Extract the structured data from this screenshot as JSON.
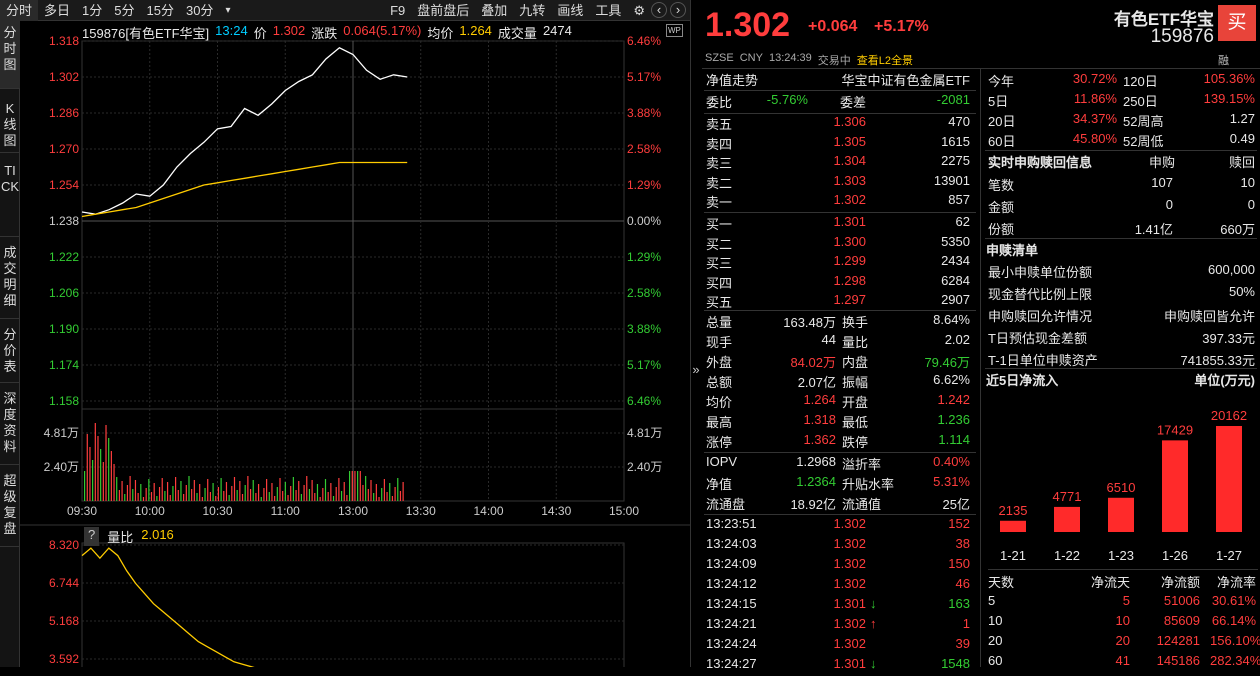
{
  "toolbar": {
    "items": [
      "分时",
      "多日",
      "1分",
      "5分",
      "15分",
      "30分",
      "▾",
      "F9",
      "盘前盘后",
      "叠加",
      "九转",
      "画线",
      "工具"
    ]
  },
  "leftnav": [
    "分时图",
    "K线图",
    "TICK",
    "成交明细",
    "分价表",
    "深度资料",
    "超级复盘"
  ],
  "chart_header": {
    "code_name": "159876[有色ETF华宝]",
    "time": "13:24",
    "price_label": "价",
    "price": "1.302",
    "change_label": "涨跌",
    "change": "0.064(5.17%)",
    "avg_label": "均价",
    "avg": "1.264",
    "vol_label": "成交量",
    "vol": "2474"
  },
  "volratio_header": {
    "q": "?",
    "label": "量比",
    "value": "2.016"
  },
  "chart_data": [
    {
      "type": "line",
      "title": "",
      "y_price_ticks": [
        "1.318",
        "1.302",
        "1.286",
        "1.270",
        "1.254",
        "1.238",
        "1.222",
        "1.206",
        "1.190",
        "1.174",
        "1.158"
      ],
      "y_pct_ticks": [
        "6.46%",
        "5.17%",
        "3.88%",
        "2.58%",
        "1.29%",
        "0.00%",
        "1.29%",
        "2.58%",
        "3.88%",
        "5.17%",
        "6.46%"
      ],
      "x_ticks": [
        "09:30",
        "10:00",
        "10:30",
        "11:00",
        "13:00",
        "13:30",
        "14:00",
        "14:30",
        "15:00"
      ],
      "prev_close": 1.238,
      "ylim": [
        1.158,
        1.318
      ],
      "series": [
        {
          "color": "#ffffff",
          "values": [
            1.242,
            1.241,
            1.243,
            1.246,
            1.25,
            1.249,
            1.254,
            1.262,
            1.268,
            1.273,
            1.279,
            1.28,
            1.288,
            1.285,
            1.29,
            1.296,
            1.3,
            1.303,
            1.31,
            1.315,
            1.312,
            1.305,
            1.301,
            1.303,
            1.302
          ]
        },
        {
          "color": "#ffcc00",
          "values": [
            1.24,
            1.241,
            1.242,
            1.243,
            1.244,
            1.246,
            1.248,
            1.25,
            1.252,
            1.254,
            1.255,
            1.256,
            1.257,
            1.258,
            1.259,
            1.26,
            1.261,
            1.262,
            1.263,
            1.264,
            1.264,
            1.264,
            1.264,
            1.264,
            1.264
          ]
        }
      ],
      "volume_ticks": [
        "4.81万",
        "2.40万"
      ]
    },
    {
      "type": "line",
      "y_ticks": [
        "8.320",
        "6.744",
        "5.168",
        "3.592"
      ],
      "ylim": [
        3.2,
        8.5
      ],
      "series": [
        {
          "color": "#ffcc00",
          "values": [
            8.0,
            8.3,
            7.9,
            8.3,
            8.0,
            7.4,
            6.9,
            6.5,
            6.1,
            5.8,
            5.5,
            5.2,
            4.9,
            4.6,
            4.4,
            4.2,
            4.0,
            3.8,
            3.7,
            3.6,
            3.5
          ]
        }
      ]
    },
    {
      "type": "bar",
      "title": "近5日净流入",
      "unit": "单位(万元)",
      "categories": [
        "1-21",
        "1-22",
        "1-23",
        "1-26",
        "1-27"
      ],
      "values": [
        2135,
        4771,
        6510,
        17429,
        20162
      ]
    }
  ],
  "quote": {
    "name": "有色ETF华宝",
    "code": "159876",
    "buy_badge": "买",
    "price": "1.302",
    "change": "+0.064",
    "pct": "+5.17%",
    "exchange": "SZSE",
    "currency": "CNY",
    "time": "13:24:39",
    "status": "交易中",
    "l2": "查看L2全景",
    "fusion": "融"
  },
  "nav_row": {
    "left": "净值走势",
    "right": "华宝中证有色金属ETF"
  },
  "weibi": {
    "l1": "委比",
    "v1": "-5.76%",
    "l2": "委差",
    "v2": "-2081"
  },
  "asks": [
    {
      "label": "卖五",
      "price": "1.306",
      "vol": "470"
    },
    {
      "label": "卖四",
      "price": "1.305",
      "vol": "1615"
    },
    {
      "label": "卖三",
      "price": "1.304",
      "vol": "2275"
    },
    {
      "label": "卖二",
      "price": "1.303",
      "vol": "13901"
    },
    {
      "label": "卖一",
      "price": "1.302",
      "vol": "857"
    }
  ],
  "bids": [
    {
      "label": "买一",
      "price": "1.301",
      "vol": "62"
    },
    {
      "label": "买二",
      "price": "1.300",
      "vol": "5350"
    },
    {
      "label": "买三",
      "price": "1.299",
      "vol": "2434"
    },
    {
      "label": "买四",
      "price": "1.298",
      "vol": "6284"
    },
    {
      "label": "买五",
      "price": "1.297",
      "vol": "2907"
    }
  ],
  "stats": [
    {
      "l1": "总量",
      "v1": "163.48万",
      "c1": "white",
      "l2": "换手",
      "v2": "8.64%",
      "c2": "white"
    },
    {
      "l1": "现手",
      "v1": "44",
      "c1": "white",
      "l2": "量比",
      "v2": "2.02",
      "c2": "white"
    },
    {
      "l1": "外盘",
      "v1": "84.02万",
      "c1": "red",
      "l2": "内盘",
      "v2": "79.46万",
      "c2": "green"
    },
    {
      "l1": "总额",
      "v1": "2.07亿",
      "c1": "white",
      "l2": "振幅",
      "v2": "6.62%",
      "c2": "white"
    },
    {
      "l1": "均价",
      "v1": "1.264",
      "c1": "red",
      "l2": "开盘",
      "v2": "1.242",
      "c2": "red"
    },
    {
      "l1": "最高",
      "v1": "1.318",
      "c1": "red",
      "l2": "最低",
      "v2": "1.236",
      "c2": "green"
    },
    {
      "l1": "涨停",
      "v1": "1.362",
      "c1": "red",
      "l2": "跌停",
      "v2": "1.114",
      "c2": "green"
    }
  ],
  "stats2": [
    {
      "l1": "IOPV",
      "v1": "1.2968",
      "c1": "white",
      "l2": "溢折率",
      "v2": "0.40%",
      "c2": "red"
    },
    {
      "l1": "净值",
      "v1": "1.2364",
      "c1": "green",
      "l2": "升贴水率",
      "v2": "5.31%",
      "c2": "red"
    },
    {
      "l1": "流通盘",
      "v1": "18.92亿",
      "c1": "white",
      "l2": "流通值",
      "v2": "25亿",
      "c2": "white"
    }
  ],
  "ticks": [
    {
      "time": "13:23:51",
      "price": "1.302",
      "arrow": "",
      "vol": "152",
      "vc": "red"
    },
    {
      "time": "13:24:03",
      "price": "1.302",
      "arrow": "",
      "vol": "38",
      "vc": "red"
    },
    {
      "time": "13:24:09",
      "price": "1.302",
      "arrow": "",
      "vol": "150",
      "vc": "red"
    },
    {
      "time": "13:24:12",
      "price": "1.302",
      "arrow": "",
      "vol": "46",
      "vc": "red"
    },
    {
      "time": "13:24:15",
      "price": "1.301",
      "arrow": "↓",
      "vol": "163",
      "vc": "green"
    },
    {
      "time": "13:24:21",
      "price": "1.302",
      "arrow": "↑",
      "vol": "1",
      "vc": "red"
    },
    {
      "time": "13:24:24",
      "price": "1.302",
      "arrow": "",
      "vol": "39",
      "vc": "red"
    },
    {
      "time": "13:24:27",
      "price": "1.301",
      "arrow": "↓",
      "vol": "1548",
      "vc": "green"
    }
  ],
  "perf": [
    {
      "l1": "今年",
      "v1": "30.72%",
      "l2": "120日",
      "v2": "105.36%"
    },
    {
      "l1": "5日",
      "v1": "11.86%",
      "l2": "250日",
      "v2": "139.15%"
    },
    {
      "l1": "20日",
      "v1": "34.37%",
      "l2": "52周高",
      "v2": "1.27"
    },
    {
      "l1": "60日",
      "v1": "45.80%",
      "l2": "52周低",
      "v2": "0.49"
    }
  ],
  "subs": {
    "title": "实时申购赎回信息",
    "h1": "申购",
    "h2": "赎回",
    "rows": [
      {
        "l": "笔数",
        "a": "107",
        "b": "10"
      },
      {
        "l": "金额",
        "a": "0",
        "b": "0"
      },
      {
        "l": "份额",
        "a": "1.41亿",
        "b": "660万"
      }
    ]
  },
  "redemption": {
    "title": "申赎清单",
    "rows": [
      {
        "l": "最小申赎单位份额",
        "v": "600,000"
      },
      {
        "l": "现金替代比例上限",
        "v": "50%"
      },
      {
        "l": "申购赎回允许情况",
        "v": "申购赎回皆允许"
      },
      {
        "l": "T日预估现金差额",
        "v": "397.33元"
      },
      {
        "l": "T-1日单位申赎资产",
        "v": "741855.33元"
      }
    ]
  },
  "flow_table": {
    "headers": [
      "天数",
      "净流天",
      "净流额",
      "净流率"
    ],
    "rows": [
      [
        "5",
        "5",
        "51006",
        "30.61%"
      ],
      [
        "10",
        "10",
        "85609",
        "66.14%"
      ],
      [
        "20",
        "20",
        "124281",
        "156.10%"
      ],
      [
        "60",
        "41",
        "145186",
        "282.34%"
      ]
    ]
  },
  "expand_glyph": "»",
  "wp_badge": "WP",
  "settings_icon": "⚙",
  "nav_icons": [
    "‹",
    "›"
  ]
}
